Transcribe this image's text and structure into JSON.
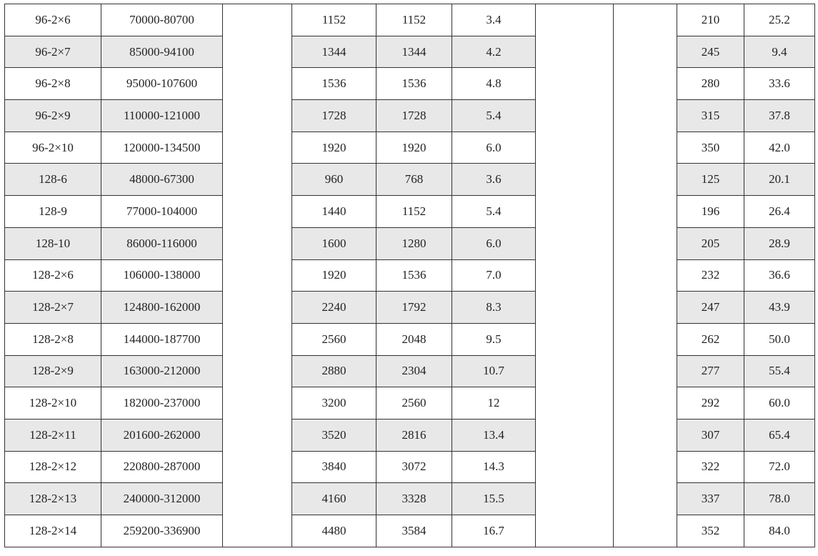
{
  "rows": [
    [
      "96-2×6",
      "70000-80700",
      "1152",
      "1152",
      "3.4",
      "210",
      "25.2"
    ],
    [
      "96-2×7",
      "85000-94100",
      "1344",
      "1344",
      "4.2",
      "245",
      "9.4"
    ],
    [
      "96-2×8",
      "95000-107600",
      "1536",
      "1536",
      "4.8",
      "280",
      "33.6"
    ],
    [
      "96-2×9",
      "110000-121000",
      "1728",
      "1728",
      "5.4",
      "315",
      "37.8"
    ],
    [
      "96-2×10",
      "120000-134500",
      "1920",
      "1920",
      "6.0",
      "350",
      "42.0"
    ],
    [
      "128-6",
      "48000-67300",
      "960",
      "768",
      "3.6",
      "125",
      "20.1"
    ],
    [
      "128-9",
      "77000-104000",
      "1440",
      "1152",
      "5.4",
      "196",
      "26.4"
    ],
    [
      "128-10",
      "86000-116000",
      "1600",
      "1280",
      "6.0",
      "205",
      "28.9"
    ],
    [
      "128-2×6",
      "106000-138000",
      "1920",
      "1536",
      "7.0",
      "232",
      "36.6"
    ],
    [
      "128-2×7",
      "124800-162000",
      "2240",
      "1792",
      "8.3",
      "247",
      "43.9"
    ],
    [
      "128-2×8",
      "144000-187700",
      "2560",
      "2048",
      "9.5",
      "262",
      "50.0"
    ],
    [
      "128-2×9",
      "163000-212000",
      "2880",
      "2304",
      "10.7",
      "277",
      "55.4"
    ],
    [
      "128-2×10",
      "182000-237000",
      "3200",
      "2560",
      "12",
      "292",
      "60.0"
    ],
    [
      "128-2×11",
      "201600-262000",
      "3520",
      "2816",
      "13.4",
      "307",
      "65.4"
    ],
    [
      "128-2×12",
      "220800-287000",
      "3840",
      "3072",
      "14.3",
      "322",
      "72.0"
    ],
    [
      "128-2×13",
      "240000-312000",
      "4160",
      "3328",
      "15.5",
      "337",
      "78.0"
    ],
    [
      "128-2×14",
      "259200-336900",
      "4480",
      "3584",
      "16.7",
      "352",
      "84.0"
    ]
  ],
  "colors": {
    "alt_row": "#e8e8e8",
    "border": "#333333"
  }
}
